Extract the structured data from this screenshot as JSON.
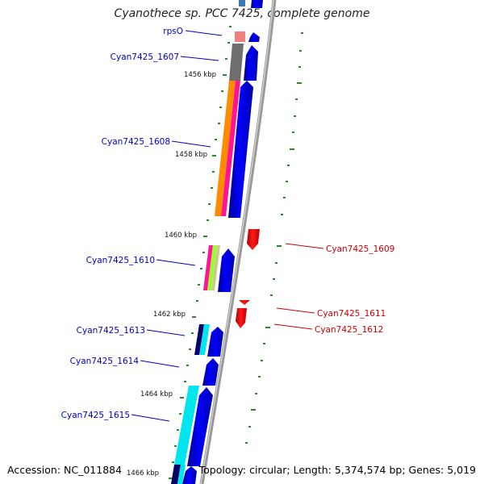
{
  "title": "Cyanothece sp. PCC 7425, complete genome",
  "footer": {
    "accession": "Accession: NC_011884",
    "summary": "Topology: circular; Length: 5,374,574 bp; Genes: 5,019"
  },
  "ruler": [
    {
      "label": "1456 kbp"
    },
    {
      "label": "1458 kbp"
    },
    {
      "label": "1460 kbp"
    },
    {
      "label": "1462 kbp"
    },
    {
      "label": "1464 kbp"
    },
    {
      "label": "1466 kbp"
    }
  ],
  "genes_forward": [
    {
      "label": "rpsO"
    },
    {
      "label": "Cyan7425_1607"
    },
    {
      "label": "Cyan7425_1608"
    },
    {
      "label": "Cyan7425_1610"
    },
    {
      "label": "Cyan7425_1613"
    },
    {
      "label": "Cyan7425_1614"
    },
    {
      "label": "Cyan7425_1615"
    }
  ],
  "genes_reverse": [
    {
      "label": "Cyan7425_1609"
    },
    {
      "label": "Cyan7425_1611"
    },
    {
      "label": "Cyan7425_1612"
    }
  ],
  "colors": {
    "forward_label": "#0000cc",
    "reverse_label": "#cc0000",
    "forward_gene": "#0000ee",
    "reverse_gene": "#ee0000",
    "backbone": "#888888",
    "ticks": "#228822"
  }
}
